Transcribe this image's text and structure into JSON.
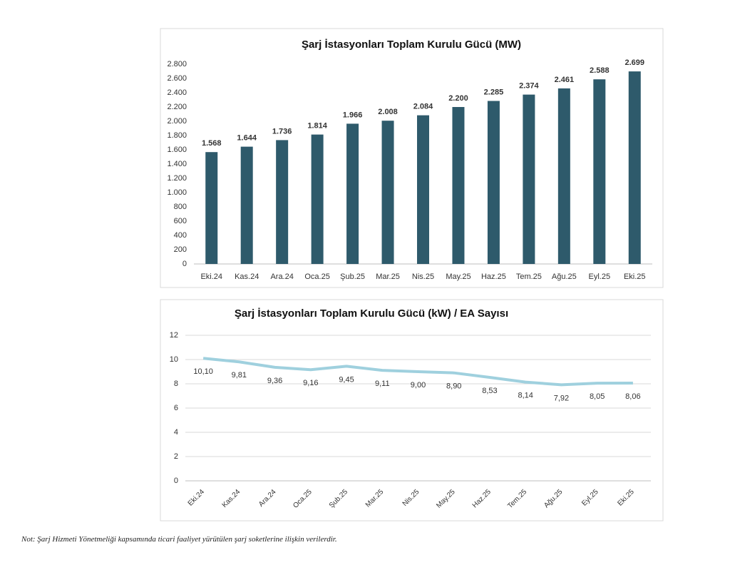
{
  "chart_data": [
    {
      "type": "bar",
      "title": "Şarj İstasyonları Toplam Kurulu Gücü (MW)",
      "categories": [
        "Eki.24",
        "Kas.24",
        "Ara.24",
        "Oca.25",
        "Şub.25",
        "Mar.25",
        "Nis.25",
        "May.25",
        "Haz.25",
        "Tem.25",
        "Ağu.25",
        "Eyl.25",
        "Eki.25"
      ],
      "values": [
        1568,
        1644,
        1736,
        1814,
        1966,
        2008,
        2084,
        2200,
        2285,
        2374,
        2461,
        2588,
        2699
      ],
      "value_labels": [
        "1.568",
        "1.644",
        "1.736",
        "1.814",
        "1.966",
        "2.008",
        "2.084",
        "2.200",
        "2.285",
        "2.374",
        "2.461",
        "2.588",
        "2.699"
      ],
      "color": "#2e5a6b",
      "ylim": [
        0,
        2800
      ],
      "yticks": [
        0,
        200,
        400,
        600,
        800,
        {
          "value": 1000,
          "label": "1.000"
        },
        {
          "value": 1200,
          "label": "1.200"
        },
        {
          "value": 1400,
          "label": "1.400"
        },
        {
          "value": 1600,
          "label": "1.600"
        },
        {
          "value": 1800,
          "label": "1.800"
        },
        {
          "value": 2000,
          "label": "2.000"
        },
        {
          "value": 2200,
          "label": "2.200"
        },
        {
          "value": 2400,
          "label": "2.400"
        },
        {
          "value": 2600,
          "label": "2.600"
        },
        {
          "value": 2800,
          "label": "2.800"
        }
      ],
      "grid": false
    },
    {
      "type": "line",
      "title": "Şarj İstasyonları Toplam Kurulu Gücü (kW) / EA Sayısı",
      "categories": [
        "Eki.24",
        "Kas.24",
        "Ara.24",
        "Oca.25",
        "Şub.25",
        "Mar.25",
        "Nis.25",
        "May.25",
        "Haz.25",
        "Tem.25",
        "Ağu.25",
        "Eyl.25",
        "Eki.25"
      ],
      "values": [
        10.1,
        9.81,
        9.36,
        9.16,
        9.45,
        9.11,
        9.0,
        8.9,
        8.53,
        8.14,
        7.92,
        8.05,
        8.06
      ],
      "value_labels": [
        "10,10",
        "9,81",
        "9,36",
        "9,16",
        "9,45",
        "9,11",
        "9,00",
        "8,90",
        "8,53",
        "8,14",
        "7,92",
        "8,05",
        "8,06"
      ],
      "color": "#9fd0de",
      "ylim": [
        0,
        12
      ],
      "yticks": [
        0,
        2,
        4,
        6,
        8,
        10,
        12
      ],
      "grid": true
    }
  ],
  "note": "Not: Şarj Hizmeti Yönetmeliği kapsamında ticari faaliyet yürütülen şarj soketlerine ilişkin verilerdir."
}
